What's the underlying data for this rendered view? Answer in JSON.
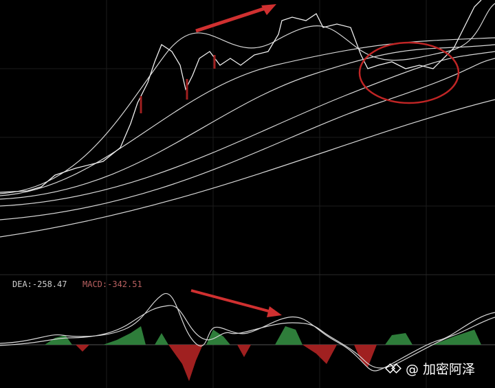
{
  "indicator_labels": [
    "DEA:-258.47",
    "MACD:-342.51"
  ],
  "watermark": "@ 加密阿泽"
}
